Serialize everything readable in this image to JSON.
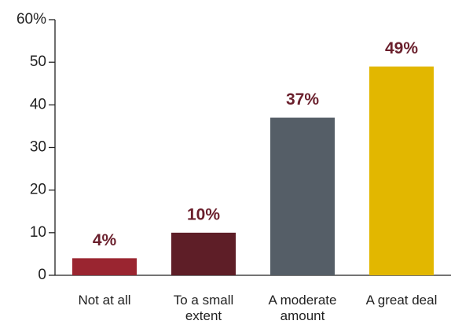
{
  "chart_data": {
    "type": "bar",
    "categories": [
      "Not at all",
      "To a small extent",
      "A moderate amount",
      "A great deal"
    ],
    "values": [
      4,
      10,
      37,
      49
    ],
    "value_labels": [
      "4%",
      "10%",
      "37%",
      "49%"
    ],
    "colors": [
      "#9a2530",
      "#5e1e27",
      "#555e67",
      "#e2b700"
    ],
    "ylim": [
      0,
      60
    ],
    "yticks": [
      0,
      10,
      20,
      30,
      40,
      {
        "value": 60,
        "label": "60%"
      },
      50
    ]
  }
}
